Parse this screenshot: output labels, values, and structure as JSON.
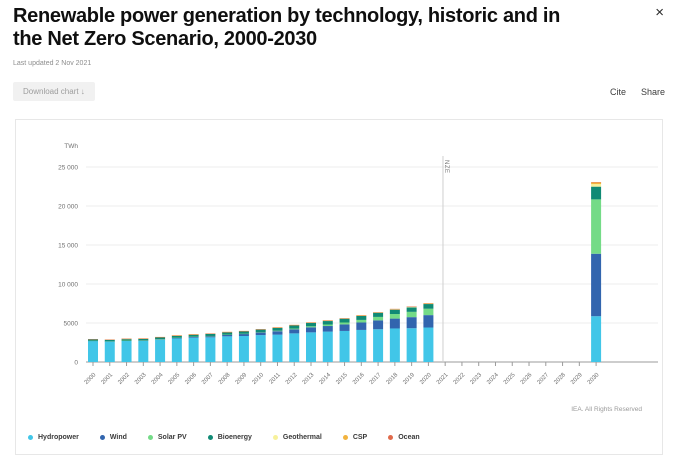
{
  "header": {
    "title": "Renewable power generation by technology, historic and in the Net Zero Scenario, 2000-2030",
    "last_updated": "Last updated 2 Nov 2021",
    "close_icon": "×"
  },
  "toolbar": {
    "download_label": "Download chart ↓",
    "cite_label": "Cite",
    "share_label": "Share"
  },
  "chart": {
    "copyright": "IEA. All Rights Reserved"
  },
  "chart_data": {
    "type": "bar",
    "stacked": true,
    "title": "Renewable power generation by technology, historic and in the Net Zero Scenario, 2000-2030",
    "xlabel": "",
    "ylabel": "TWh",
    "ylim": [
      0,
      25000
    ],
    "grid": true,
    "legend_position": "bottom",
    "yticks": [
      {
        "label": "25 000",
        "value": 25000
      },
      {
        "label": "20 000",
        "value": 20000
      },
      {
        "label": "15 000",
        "value": 15000
      },
      {
        "label": "10 000",
        "value": 10000
      },
      {
        "label": "5000",
        "value": 5000
      },
      {
        "label": "0",
        "value": 0
      }
    ],
    "categories": [
      "2000",
      "2001",
      "2002",
      "2003",
      "2004",
      "2005",
      "2006",
      "2007",
      "2008",
      "2009",
      "2010",
      "2011",
      "2012",
      "2013",
      "2014",
      "2015",
      "2016",
      "2017",
      "2018",
      "2019",
      "2020",
      "2021",
      "2022",
      "2023",
      "2024",
      "2025",
      "2026",
      "2027",
      "2028",
      "2029",
      "2030"
    ],
    "divider": {
      "label": "NZE",
      "after_index": 20
    },
    "series": [
      {
        "name": "Hydropower",
        "color": "#41C6E8",
        "values": [
          2700,
          2630,
          2700,
          2710,
          2860,
          3020,
          3120,
          3160,
          3290,
          3330,
          3450,
          3510,
          3670,
          3800,
          3900,
          3980,
          4110,
          4200,
          4300,
          4330,
          4420,
          0,
          0,
          0,
          0,
          0,
          0,
          0,
          0,
          0,
          5870
        ]
      },
      {
        "name": "Wind",
        "color": "#3265AE",
        "values": [
          31,
          38,
          52,
          63,
          85,
          104,
          133,
          171,
          221,
          276,
          342,
          437,
          523,
          645,
          712,
          838,
          957,
          1136,
          1265,
          1420,
          1590,
          0,
          0,
          0,
          0,
          0,
          0,
          0,
          0,
          0,
          8010
        ]
      },
      {
        "name": "Solar PV",
        "color": "#74DB87",
        "values": [
          1,
          1,
          2,
          2,
          3,
          4,
          5,
          7,
          12,
          20,
          32,
          63,
          97,
          134,
          190,
          247,
          328,
          444,
          585,
          680,
          821,
          0,
          0,
          0,
          0,
          0,
          0,
          0,
          0,
          0,
          6970
        ]
      },
      {
        "name": "Bioenergy",
        "color": "#108A75",
        "values": [
          164,
          170,
          180,
          193,
          205,
          227,
          240,
          255,
          270,
          288,
          331,
          360,
          390,
          420,
          450,
          483,
          505,
          530,
          555,
          570,
          600,
          0,
          0,
          0,
          0,
          0,
          0,
          0,
          0,
          0,
          1630
        ]
      },
      {
        "name": "Geothermal",
        "color": "#F7F19B",
        "values": [
          52,
          52,
          53,
          54,
          56,
          59,
          60,
          62,
          64,
          66,
          68,
          69,
          70,
          72,
          75,
          80,
          83,
          86,
          89,
          92,
          94,
          0,
          0,
          0,
          0,
          0,
          0,
          0,
          0,
          0,
          330
        ]
      },
      {
        "name": "CSP",
        "color": "#F2B33E",
        "values": [
          0,
          0,
          1,
          1,
          1,
          1,
          1,
          1,
          1,
          1,
          2,
          3,
          5,
          6,
          9,
          10,
          11,
          12,
          13,
          14,
          14,
          0,
          0,
          0,
          0,
          0,
          0,
          0,
          0,
          0,
          200
        ]
      },
      {
        "name": "Ocean",
        "color": "#E06A4B",
        "values": [
          1,
          1,
          1,
          1,
          1,
          1,
          1,
          1,
          1,
          1,
          1,
          1,
          1,
          1,
          1,
          1,
          1,
          1,
          1,
          1,
          1,
          0,
          0,
          0,
          0,
          0,
          0,
          0,
          0,
          0,
          55
        ]
      }
    ]
  }
}
